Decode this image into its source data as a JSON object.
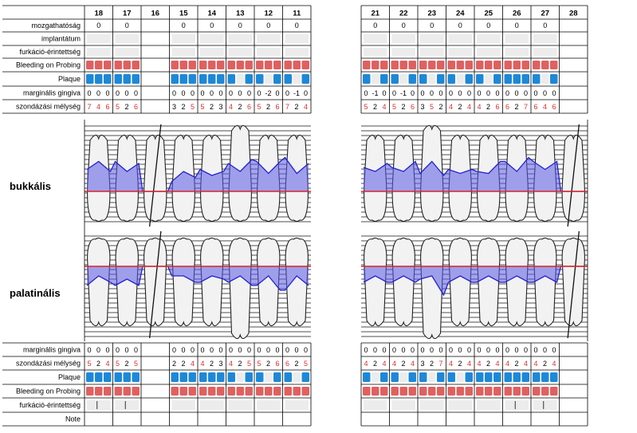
{
  "teeth_left": [
    "18",
    "17",
    "16",
    "15",
    "14",
    "13",
    "12",
    "11"
  ],
  "teeth_right": [
    "21",
    "22",
    "23",
    "24",
    "25",
    "26",
    "27",
    "28"
  ],
  "present": [
    true,
    true,
    false,
    true,
    true,
    true,
    true,
    true,
    true,
    true,
    true,
    true,
    true,
    true,
    true,
    false
  ],
  "missing_teeth": [
    "16",
    "28"
  ],
  "labels": {
    "mobility": "mozgathatóság",
    "implant": "implantátum",
    "furcation": "furkáció-érintettség",
    "bleeding": "Bleeding on Probing",
    "plaque": "Plaque",
    "gingival_margin": "marginális gingiva",
    "probing_depth": "szondázási mélység",
    "note": "Note",
    "buccal": "bukkális",
    "palatal": "palatinális"
  },
  "colors": {
    "bleeding": "#e06060",
    "plaque": "#1e88d8",
    "empty": "#ececec",
    "band": "#5555dd",
    "cej": "#dd2222",
    "grid": "#000000"
  },
  "upper": {
    "mobility": [
      "0",
      "0",
      "",
      "0",
      "0",
      "0",
      "0",
      "0",
      "0",
      "0",
      "0",
      "0",
      "0",
      "0",
      "0",
      ""
    ],
    "bleeding": [
      [
        1,
        1,
        1
      ],
      [
        1,
        1,
        1
      ],
      null,
      [
        1,
        1,
        1
      ],
      [
        1,
        1,
        1
      ],
      [
        1,
        1,
        1
      ],
      [
        1,
        1,
        1
      ],
      [
        1,
        1,
        1
      ],
      [
        1,
        1,
        1
      ],
      [
        1,
        1,
        1
      ],
      [
        1,
        1,
        1
      ],
      [
        1,
        1,
        1
      ],
      [
        1,
        1,
        1
      ],
      [
        1,
        1,
        1
      ],
      [
        1,
        1,
        1
      ],
      null
    ],
    "plaque": [
      [
        1,
        1,
        1
      ],
      [
        1,
        1,
        1
      ],
      null,
      [
        1,
        1,
        1
      ],
      [
        1,
        1,
        1
      ],
      [
        1,
        0,
        1
      ],
      [
        1,
        0,
        1
      ],
      [
        1,
        0,
        1
      ],
      [
        1,
        0,
        1
      ],
      [
        1,
        0,
        1
      ],
      [
        1,
        0,
        1
      ],
      [
        1,
        0,
        1
      ],
      [
        1,
        0,
        1
      ],
      [
        1,
        1,
        1
      ],
      [
        1,
        0,
        1
      ],
      null
    ],
    "gingival": [
      [
        "0",
        "0",
        "0"
      ],
      [
        "0",
        "0",
        "0"
      ],
      null,
      [
        "0",
        "0",
        "0"
      ],
      [
        "0",
        "0",
        "0"
      ],
      [
        "0",
        "0",
        "0"
      ],
      [
        "0",
        "-2",
        "0"
      ],
      [
        "0",
        "-1",
        "0"
      ],
      [
        "0",
        "-1",
        "0"
      ],
      [
        "0",
        "-1",
        "0"
      ],
      [
        "0",
        "0",
        "0"
      ],
      [
        "0",
        "0",
        "0"
      ],
      [
        "0",
        "0",
        "0"
      ],
      [
        "0",
        "0",
        "0"
      ],
      [
        "0",
        "0",
        "0"
      ],
      null
    ],
    "depth": [
      [
        "7",
        "4",
        "6"
      ],
      [
        "5",
        "2",
        "6"
      ],
      null,
      [
        "3",
        "2",
        "5"
      ],
      [
        "5",
        "2",
        "3"
      ],
      [
        "4",
        "2",
        "6"
      ],
      [
        "5",
        "2",
        "6"
      ],
      [
        "7",
        "2",
        "4"
      ],
      [
        "5",
        "2",
        "4"
      ],
      [
        "5",
        "2",
        "6"
      ],
      [
        "3",
        "5",
        "2"
      ],
      [
        "4",
        "2",
        "4"
      ],
      [
        "4",
        "2",
        "6"
      ],
      [
        "6",
        "2",
        "7"
      ],
      [
        "6",
        "4",
        "6"
      ],
      null
    ]
  },
  "lower": {
    "gingival": [
      [
        "0",
        "0",
        "0"
      ],
      [
        "0",
        "0",
        "0"
      ],
      null,
      [
        "0",
        "0",
        "0"
      ],
      [
        "0",
        "0",
        "0"
      ],
      [
        "0",
        "0",
        "0"
      ],
      [
        "0",
        "0",
        "0"
      ],
      [
        "0",
        "0",
        "0"
      ],
      [
        "0",
        "0",
        "0"
      ],
      [
        "0",
        "0",
        "0"
      ],
      [
        "0",
        "0",
        "0"
      ],
      [
        "0",
        "0",
        "0"
      ],
      [
        "0",
        "0",
        "0"
      ],
      [
        "0",
        "0",
        "0"
      ],
      [
        "0",
        "0",
        "0"
      ],
      null
    ],
    "depth": [
      [
        "5",
        "2",
        "4"
      ],
      [
        "5",
        "2",
        "5"
      ],
      null,
      [
        "2",
        "2",
        "4"
      ],
      [
        "4",
        "2",
        "3"
      ],
      [
        "4",
        "2",
        "5"
      ],
      [
        "5",
        "2",
        "6"
      ],
      [
        "6",
        "2",
        "5"
      ],
      [
        "4",
        "2",
        "4"
      ],
      [
        "4",
        "2",
        "4"
      ],
      [
        "3",
        "2",
        "7"
      ],
      [
        "4",
        "2",
        "4"
      ],
      [
        "4",
        "2",
        "4"
      ],
      [
        "4",
        "2",
        "4"
      ],
      [
        "4",
        "2",
        "4"
      ],
      null
    ],
    "plaque": [
      [
        1,
        1,
        1
      ],
      [
        1,
        1,
        1
      ],
      null,
      [
        1,
        1,
        1
      ],
      [
        1,
        1,
        1
      ],
      [
        1,
        0,
        1
      ],
      [
        1,
        0,
        1
      ],
      [
        1,
        0,
        1
      ],
      [
        1,
        0,
        1
      ],
      [
        1,
        0,
        1
      ],
      [
        1,
        0,
        1
      ],
      [
        1,
        0,
        1
      ],
      [
        1,
        1,
        1
      ],
      [
        1,
        1,
        1
      ],
      [
        1,
        1,
        1
      ],
      null
    ],
    "bleeding": [
      [
        1,
        1,
        1
      ],
      [
        1,
        1,
        1
      ],
      null,
      [
        1,
        1,
        1
      ],
      [
        1,
        1,
        1
      ],
      [
        1,
        1,
        1
      ],
      [
        1,
        1,
        1
      ],
      [
        1,
        1,
        1
      ],
      [
        1,
        1,
        1
      ],
      [
        1,
        1,
        1
      ],
      [
        1,
        1,
        1
      ],
      [
        1,
        1,
        1
      ],
      [
        1,
        1,
        1
      ],
      [
        1,
        1,
        1
      ],
      [
        1,
        1,
        1
      ],
      null
    ]
  },
  "buccal_level": [
    [
      0.55,
      0.75,
      0.5
    ],
    [
      0.75,
      0.5,
      0.7
    ],
    null,
    [
      0.25,
      0.5,
      0.35
    ],
    [
      0.55,
      0.4,
      0.5
    ],
    [
      0.7,
      0.5,
      0.8
    ],
    [
      0.75,
      0.45,
      0.75
    ],
    [
      0.85,
      0.45,
      0.7
    ],
    [
      0.6,
      0.5,
      0.7
    ],
    [
      0.6,
      0.5,
      0.75
    ],
    [
      0.45,
      0.75,
      0.4
    ],
    [
      0.55,
      0.45,
      0.55
    ],
    [
      0.5,
      0.45,
      0.75
    ],
    [
      0.75,
      0.5,
      0.85
    ],
    [
      0.75,
      0.55,
      0.75
    ],
    null
  ],
  "palatal_level": [
    [
      0.6,
      0.3,
      0.5
    ],
    [
      0.6,
      0.4,
      0.6
    ],
    null,
    [
      0.3,
      0.3,
      0.5
    ],
    [
      0.5,
      0.3,
      0.4
    ],
    [
      0.5,
      0.3,
      0.6
    ],
    [
      0.6,
      0.3,
      0.75
    ],
    [
      0.75,
      0.3,
      0.6
    ],
    [
      0.5,
      0.3,
      0.5
    ],
    [
      0.5,
      0.3,
      0.5
    ],
    [
      0.4,
      0.3,
      0.9
    ],
    [
      0.5,
      0.3,
      0.5
    ],
    [
      0.5,
      0.3,
      0.5
    ],
    [
      0.5,
      0.3,
      0.5
    ],
    [
      0.5,
      0.3,
      0.5
    ],
    null
  ]
}
